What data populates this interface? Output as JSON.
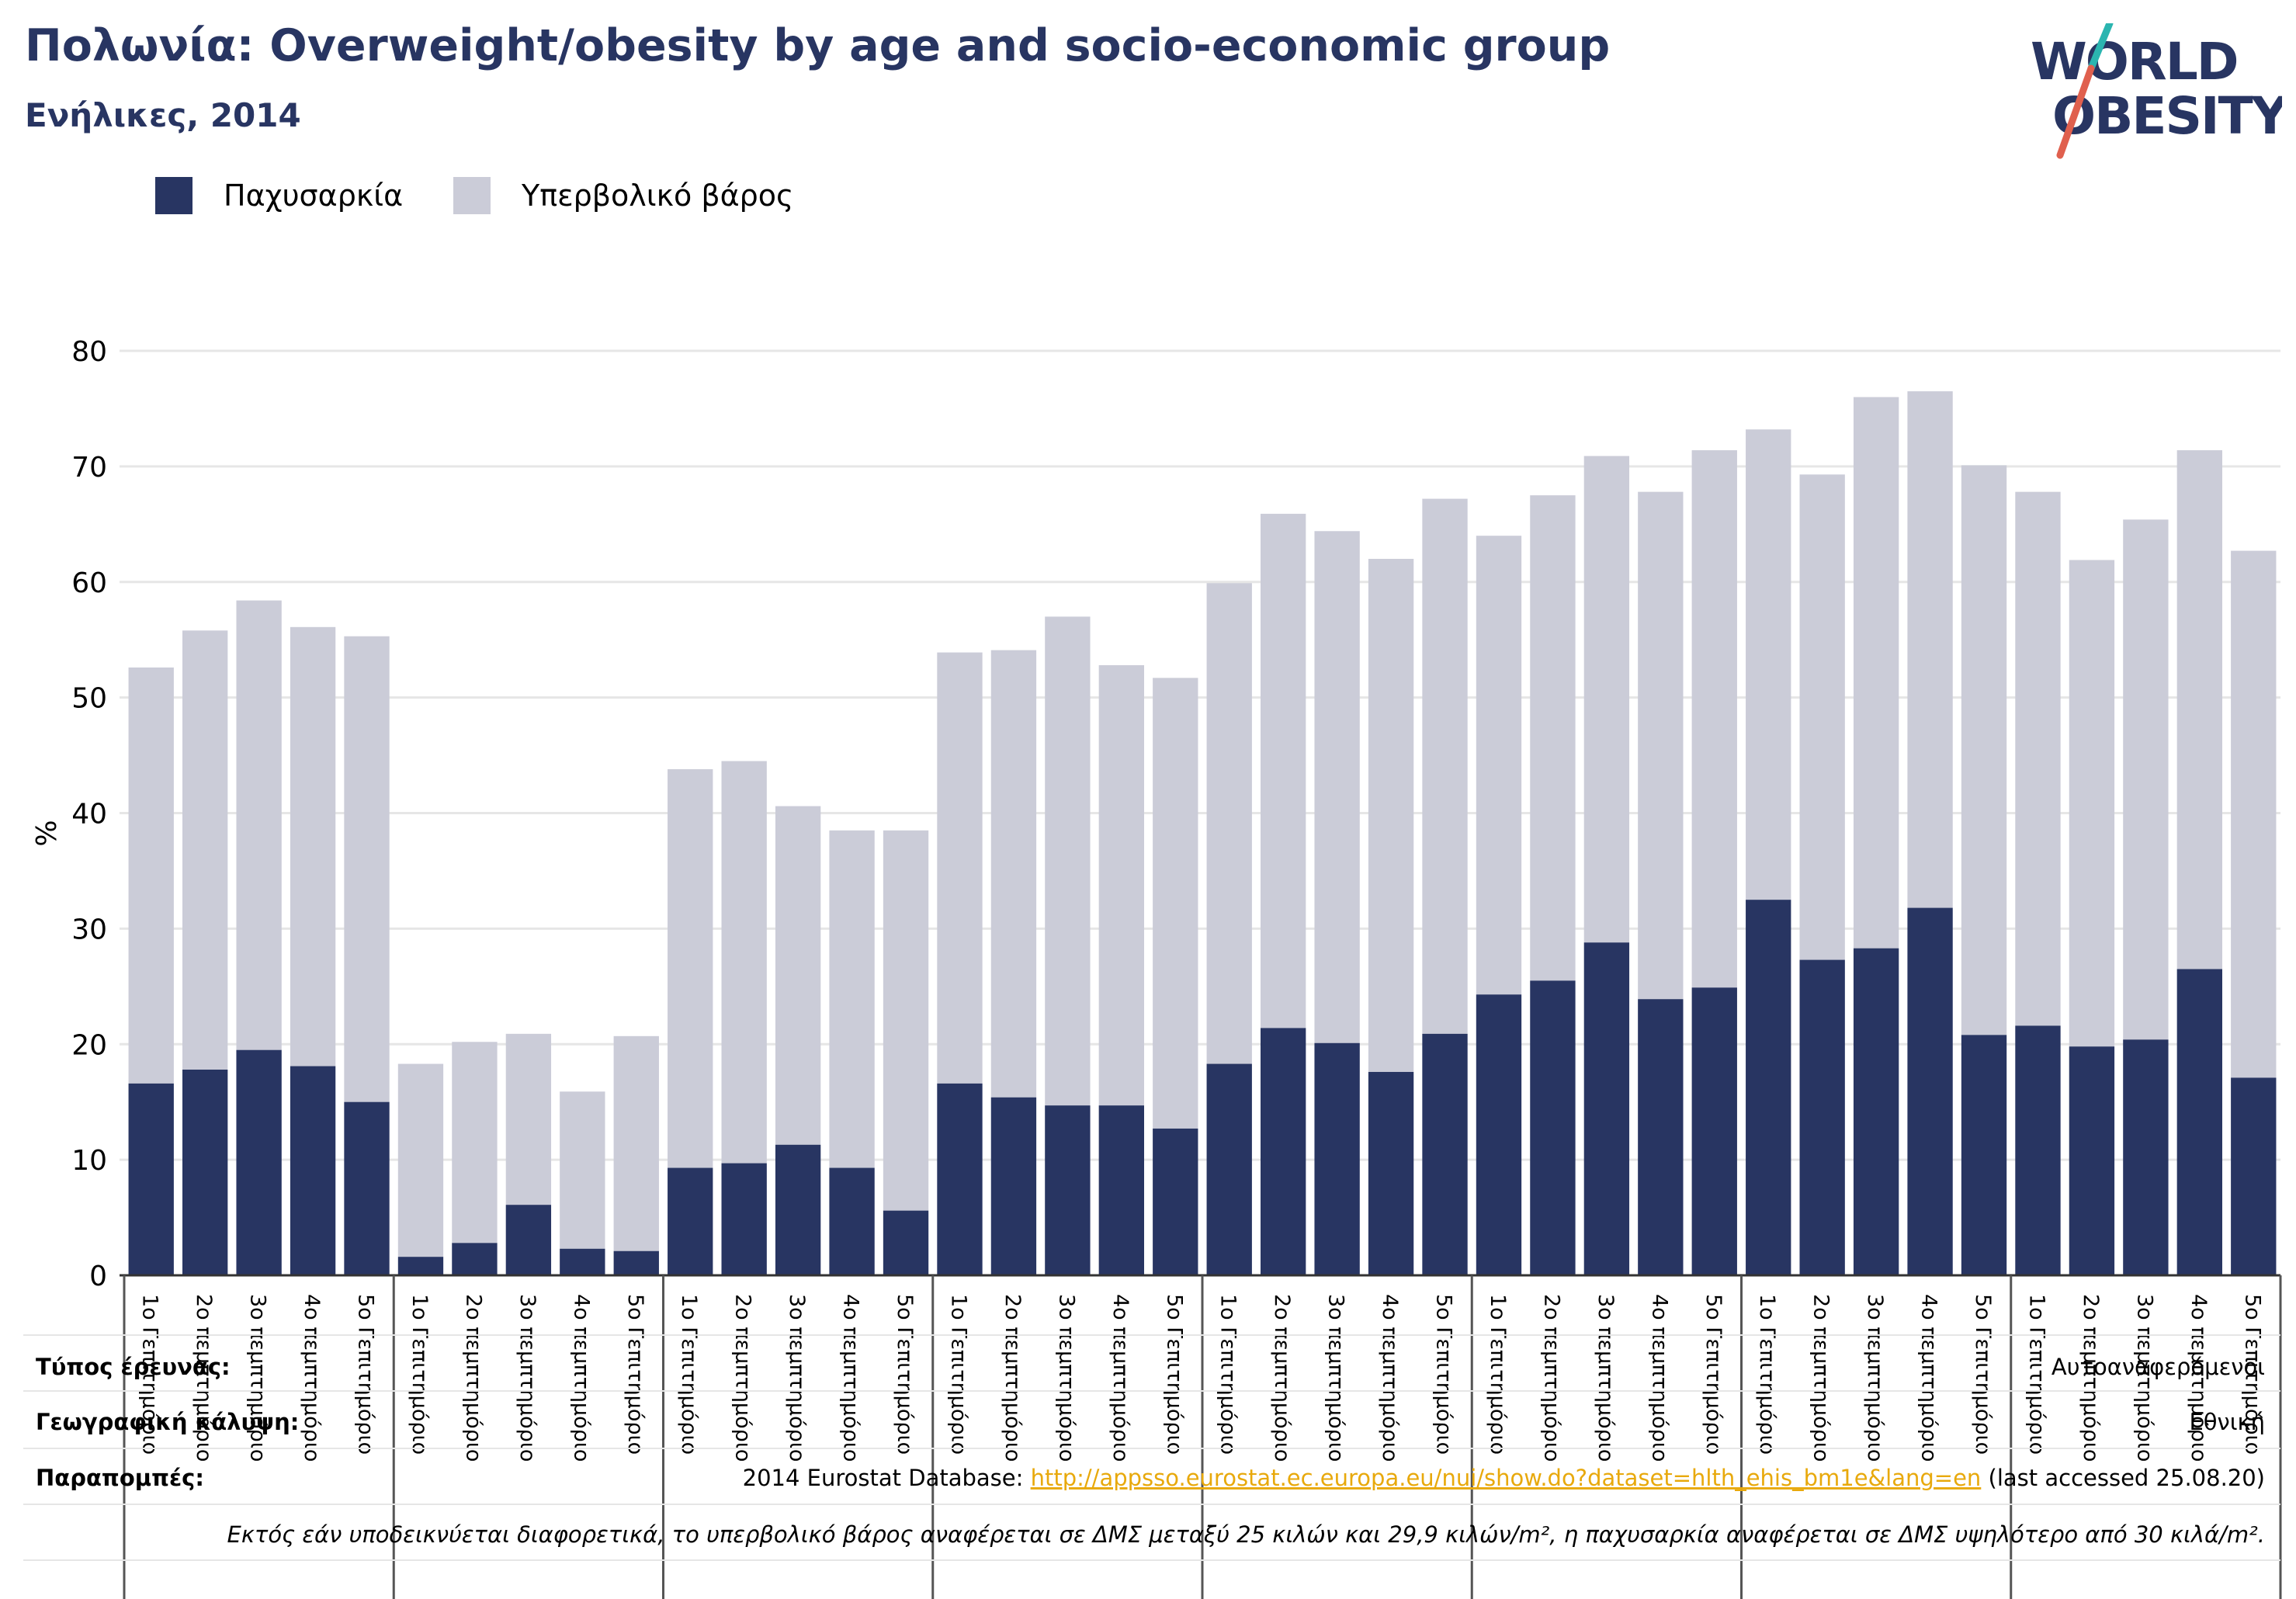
{
  "header": {
    "title": "Πολωνία: Overweight/obesity by age and socio-economic group",
    "subtitle": "Ενήλικες, 2014"
  },
  "logo": {
    "line1": "WORLD",
    "line2": "OBESITY"
  },
  "colors": {
    "obesity": "#283562",
    "overweight": "#cbccd8",
    "grid": "#e6e6e6",
    "divider": "#555555",
    "logo_text": "#283562",
    "logo_slash_top": "#2bb5b0",
    "logo_slash_bottom": "#e0604e",
    "link": "#e8a90c"
  },
  "legend": {
    "obesity": "Παχυσαρκία",
    "overweight": "Υπερβολικό βάρος"
  },
  "chart_data": {
    "type": "bar",
    "stacked": true,
    "ylabel": "%",
    "ylim": [
      0,
      80
    ],
    "yticks": [
      0,
      10,
      20,
      30,
      40,
      50,
      60,
      70,
      80
    ],
    "grid": true,
    "legend_position": "top-left",
    "categories": [
      "1ο Γεπιτημόριο",
      "2ο πεμπτημόριο",
      "3ο πεμπτημόριο",
      "4ο πεμπτημόριο",
      "5ο Γεπιτημόριο",
      "1ο Γεπιτημόριο",
      "2ο πεμπτημόριο",
      "3ο πεμπτημόριο",
      "4ο πεμπτημόριο",
      "5ο Γεπιτημόριο",
      "1ο Γεπιτημόριο",
      "2ο πεμπτημόριο",
      "3ο πεμπτημόριο",
      "4ο πεμπτημόριο",
      "5ο Γεπιτημόριο",
      "1ο Γεπιτημόριο",
      "2ο πεμπτημόριο",
      "3ο πεμπτημόριο",
      "4ο πεμπτημόριο",
      "5ο Γεπιτημόριο",
      "1ο Γεπιτημόριο",
      "2ο πεμπτημόριο",
      "3ο πεμπτημόριο",
      "4ο πεμπτημόριο",
      "5ο Γεπιτημόριο",
      "1ο Γεπιτημόριο",
      "2ο πεμπτημόριο",
      "3ο πεμπτημόριο",
      "4ο πεμπτημόριο",
      "5ο Γεπιτημόριο",
      "1ο Γεπιτημόριο",
      "2ο πεμπτημόριο",
      "3ο πεμπτημόριο",
      "4ο πεμπτημόριο",
      "5ο Γεπιτημόριο",
      "1ο Γεπιτημόριο",
      "2ο πεμπτημόριο",
      "3ο πεμπτημόριο",
      "4ο πεμπτημόριο",
      "5ο Γεπιτημόριο"
    ],
    "group_size": 5,
    "totals": [
      52.6,
      55.8,
      58.4,
      56.1,
      55.3,
      18.3,
      20.2,
      20.9,
      15.9,
      20.7,
      43.8,
      44.5,
      40.6,
      38.5,
      38.5,
      53.9,
      54.1,
      57.0,
      52.8,
      51.7,
      59.9,
      65.9,
      64.4,
      62.0,
      67.2,
      64.0,
      67.5,
      70.9,
      67.8,
      71.4,
      73.2,
      69.3,
      76.0,
      76.5,
      70.1,
      67.8,
      61.9,
      65.4,
      71.4,
      62.7
    ],
    "series": [
      {
        "name": "Παχυσαρκία",
        "values": [
          16.6,
          17.8,
          19.5,
          18.1,
          15.0,
          1.6,
          2.8,
          6.1,
          2.3,
          2.1,
          9.3,
          9.7,
          11.3,
          9.3,
          5.6,
          16.6,
          15.4,
          14.7,
          14.7,
          12.7,
          18.3,
          21.4,
          20.1,
          17.6,
          20.9,
          24.3,
          25.5,
          28.8,
          23.9,
          24.9,
          32.5,
          27.3,
          28.3,
          31.8,
          20.8,
          21.6,
          19.8,
          20.4,
          26.5,
          17.1
        ]
      },
      {
        "name": "Υπερβολικό βάρος",
        "values": [
          36.0,
          38.0,
          38.9,
          38.0,
          40.3,
          16.7,
          17.4,
          14.8,
          13.6,
          18.6,
          34.5,
          34.8,
          29.3,
          29.2,
          32.9,
          37.3,
          38.7,
          42.3,
          38.1,
          39.0,
          41.6,
          44.5,
          44.3,
          44.4,
          46.3,
          39.7,
          42.0,
          42.1,
          43.9,
          46.5,
          40.7,
          42.0,
          47.7,
          44.7,
          49.3,
          46.2,
          42.1,
          45.0,
          44.9,
          45.6
        ]
      }
    ]
  },
  "notes": {
    "survey_type_label": "Τύπος έρευνας:",
    "survey_type_value": "Αυτοαναφερόμενοι",
    "coverage_label": "Γεωγραφική κάλυψη:",
    "coverage_value": "Εθνική",
    "references_label": "Παραπομπές:",
    "references_prefix": "2014 Eurostat Database: ",
    "references_link": "http://appsso.eurostat.ec.europa.eu/nui/show.do?dataset=hlth_ehis_bm1e&lang=en",
    "references_suffix": " (last accessed 25.08.20)",
    "definition": "Εκτός εάν υποδεικνύεται διαφορετικά, το υπερβολικό βάρος αναφέρεται σε ΔΜΣ μεταξύ 25 κιλών και 29,9 κιλών/m², η παχυσαρκία αναφέρεται σε ΔΜΣ υψηλότερο από 30 κιλά/m²."
  }
}
